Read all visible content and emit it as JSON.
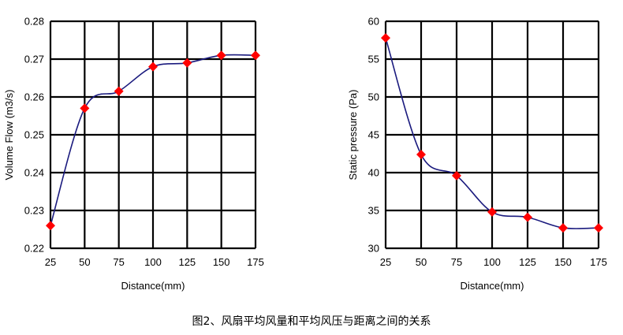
{
  "caption": "图2、风扇平均风量和平均风压与距离之间的关系",
  "colors": {
    "grid": "#000000",
    "line": "#1a1a7e",
    "marker": "#ff0000"
  },
  "chart_data": [
    {
      "type": "line",
      "xlabel": "Distance(mm)",
      "ylabel": "Volume Flow  (m3/s)",
      "x": [
        25,
        50,
        75,
        100,
        125,
        150,
        175
      ],
      "xlim": [
        25,
        175
      ],
      "x_ticks": [
        "25",
        "50",
        "75",
        "100",
        "125",
        "150",
        "175"
      ],
      "ylim": [
        0.22,
        0.28
      ],
      "y_ticks": [
        "0.22",
        "0.23",
        "0.24",
        "0.25",
        "0.26",
        "0.27",
        "0.28"
      ],
      "grid": true,
      "series": [
        {
          "values": [
            0.226,
            0.257,
            0.2615,
            0.268,
            0.269,
            0.271,
            0.271
          ],
          "marker": "diamond",
          "smooth": true
        }
      ]
    },
    {
      "type": "line",
      "xlabel": "Distance(mm)",
      "ylabel": "Static pressure (Pa)",
      "x": [
        25,
        50,
        75,
        100,
        125,
        150,
        175
      ],
      "xlim": [
        25,
        175
      ],
      "x_ticks": [
        "25",
        "50",
        "75",
        "100",
        "125",
        "150",
        "175"
      ],
      "ylim": [
        30,
        60
      ],
      "y_ticks": [
        "30",
        "35",
        "40",
        "45",
        "50",
        "55",
        "60"
      ],
      "grid": true,
      "series": [
        {
          "values": [
            57.8,
            42.4,
            39.6,
            34.8,
            34.1,
            32.7,
            32.7
          ],
          "marker": "diamond",
          "smooth": true
        }
      ]
    }
  ]
}
